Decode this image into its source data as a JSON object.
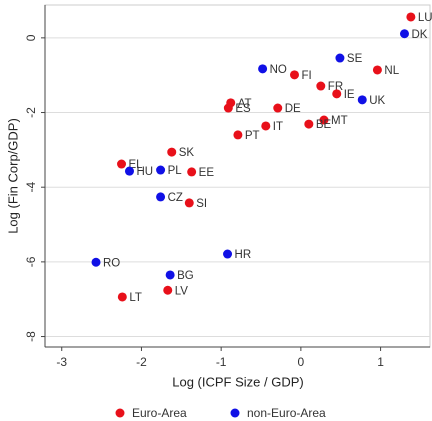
{
  "chart_data": {
    "type": "scatter",
    "x_label": "Log (ICPF Size / GDP)",
    "y_label": "Log (Fin Corp/GDP)",
    "xlim": [
      -3.21,
      1.62
    ],
    "ylim": [
      -8.28,
      0.88
    ],
    "xticks": [
      -3,
      -2,
      -1,
      0,
      1
    ],
    "yticks": [
      0,
      -2,
      -4,
      -6,
      -8
    ],
    "grid": true,
    "legend": "bottom",
    "series": [
      {
        "name": "Euro-Area",
        "color": "#e8101a",
        "labels": [
          "LU",
          "NL",
          "FI",
          "FR",
          "IE",
          "AT",
          "ES",
          "DE",
          "MT",
          "BE",
          "IT",
          "PT",
          "SK",
          "EL",
          "EE",
          "SI",
          "LV",
          "LT"
        ],
        "x": [
          1.38,
          0.96,
          -0.08,
          0.25,
          0.45,
          -0.88,
          -0.91,
          -0.29,
          0.29,
          0.1,
          -0.44,
          -0.79,
          -1.62,
          -2.25,
          -1.37,
          -1.4,
          -1.67,
          -2.24
        ],
        "values": [
          0.56,
          -0.86,
          -0.99,
          -1.29,
          -1.5,
          -1.74,
          -1.88,
          -1.88,
          -2.2,
          -2.31,
          -2.36,
          -2.6,
          -3.06,
          -3.38,
          -3.59,
          -4.42,
          -6.76,
          -6.94
        ]
      },
      {
        "name": "non-Euro-Area",
        "color": "#1010e6",
        "labels": [
          "DK",
          "SE",
          "NO",
          "UK",
          "HU",
          "PL",
          "CZ",
          "HR",
          "RO",
          "BG"
        ],
        "x": [
          1.3,
          0.49,
          -0.48,
          0.77,
          -2.15,
          -1.76,
          -1.76,
          -0.92,
          -2.57,
          -1.64
        ],
        "values": [
          0.11,
          -0.54,
          -0.83,
          -1.66,
          -3.57,
          -3.54,
          -4.26,
          -5.79,
          -6.01,
          -6.35
        ]
      }
    ]
  }
}
